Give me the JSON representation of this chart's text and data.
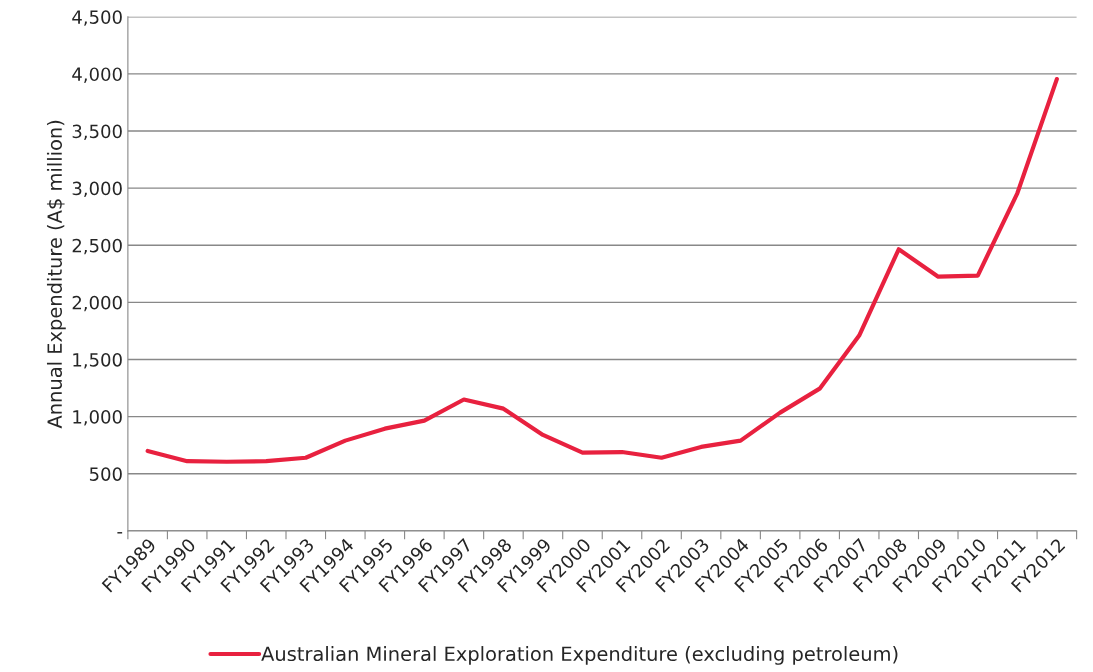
{
  "chart_data": {
    "type": "line",
    "ylabel": "Annual Expenditure (A$ million)",
    "categories": [
      "FY1989",
      "FY1990",
      "FY1991",
      "FY1992",
      "FY1993",
      "FY1994",
      "FY1995",
      "FY1996",
      "FY1997",
      "FY1998",
      "FY1999",
      "FY2000",
      "FY2001",
      "FY2002",
      "FY2003",
      "FY2004",
      "FY2005",
      "FY2006",
      "FY2007",
      "FY2008",
      "FY2009",
      "FY2010",
      "FY2011",
      "FY2012"
    ],
    "series": [
      {
        "name": "Australian Mineral Exploration Expenditure (excluding petroleum)",
        "color": "#e8213f",
        "values": [
          700,
          610,
          605,
          610,
          640,
          790,
          895,
          965,
          1150,
          1070,
          840,
          685,
          690,
          640,
          735,
          790,
          1035,
          1245,
          1710,
          2465,
          2225,
          2235,
          2955,
          3955
        ]
      }
    ],
    "ylim": [
      0,
      4500
    ],
    "yticks": [
      {
        "value": 0,
        "label": "-"
      },
      {
        "value": 500,
        "label": "500"
      },
      {
        "value": 1000,
        "label": "1,000"
      },
      {
        "value": 1500,
        "label": "1,500"
      },
      {
        "value": 2000,
        "label": "2,000"
      },
      {
        "value": 2500,
        "label": "2,500"
      },
      {
        "value": 3000,
        "label": "3,000"
      },
      {
        "value": 3500,
        "label": "3,500"
      },
      {
        "value": 4000,
        "label": "4,000"
      },
      {
        "value": 4500,
        "label": "4,500"
      }
    ],
    "grid": "y",
    "legend": "bottom",
    "marker": "none",
    "line_style": "solid"
  }
}
